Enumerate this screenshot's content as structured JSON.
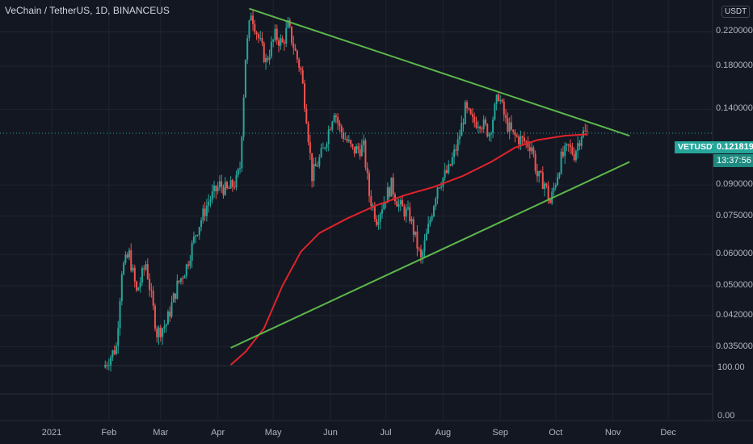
{
  "header": {
    "title": "VeChain / TetherUS, 1D, BINANCEUS",
    "currency_badge": "USDT"
  },
  "price_label": {
    "symbol": "VETUSDT",
    "price": "0.121819",
    "countdown": "13:37:56"
  },
  "lower_pane": {
    "ticks": [
      "100.00",
      "0.00"
    ]
  },
  "colors": {
    "background": "#131722",
    "up": "#26a69a",
    "down": "#ef5350",
    "ma": "#e0232b",
    "trendline": "#5cb84a",
    "grid": "#1f2430"
  },
  "chart_data": {
    "type": "candlestick",
    "title": "VeChain / TetherUS, 1D, BINANCEUS",
    "y_scale": "log",
    "ylim": [
      0.0315,
      0.265
    ],
    "y_ticks": [
      "0.220000",
      "0.180000",
      "0.140000",
      "0.090000",
      "0.075000",
      "0.060000",
      "0.050000",
      "0.042000",
      "0.035000"
    ],
    "x_ticks": [
      "2021",
      "Feb",
      "Mar",
      "Apr",
      "May",
      "Jun",
      "Jul",
      "Aug",
      "Sep",
      "Oct",
      "Nov",
      "Dec"
    ],
    "x_range": [
      "2020-12-04",
      "2021-12-25"
    ],
    "last_price": 0.121819,
    "close_path": [
      [
        "2021-01-29",
        0.031
      ],
      [
        "2021-02-05",
        0.035
      ],
      [
        "2021-02-08",
        0.055
      ],
      [
        "2021-02-12",
        0.06
      ],
      [
        "2021-02-16",
        0.048
      ],
      [
        "2021-02-21",
        0.057
      ],
      [
        "2021-02-27",
        0.038
      ],
      [
        "2021-03-04",
        0.04
      ],
      [
        "2021-03-10",
        0.05
      ],
      [
        "2021-03-15",
        0.056
      ],
      [
        "2021-03-20",
        0.068
      ],
      [
        "2021-03-27",
        0.082
      ],
      [
        "2021-04-02",
        0.09
      ],
      [
        "2021-04-06",
        0.087
      ],
      [
        "2021-04-11",
        0.092
      ],
      [
        "2021-04-13",
        0.1
      ],
      [
        "2021-04-16",
        0.19
      ],
      [
        "2021-04-19",
        0.248
      ],
      [
        "2021-04-22",
        0.22
      ],
      [
        "2021-04-27",
        0.185
      ],
      [
        "2021-05-02",
        0.215
      ],
      [
        "2021-05-06",
        0.205
      ],
      [
        "2021-05-09",
        0.228
      ],
      [
        "2021-05-13",
        0.195
      ],
      [
        "2021-05-16",
        0.175
      ],
      [
        "2021-05-19",
        0.135
      ],
      [
        "2021-05-22",
        0.095
      ],
      [
        "2021-05-28",
        0.11
      ],
      [
        "2021-06-03",
        0.14
      ],
      [
        "2021-06-06",
        0.125
      ],
      [
        "2021-06-13",
        0.11
      ],
      [
        "2021-06-19",
        0.112
      ],
      [
        "2021-06-22",
        0.085
      ],
      [
        "2021-06-26",
        0.074
      ],
      [
        "2021-06-30",
        0.082
      ],
      [
        "2021-07-04",
        0.09
      ],
      [
        "2021-07-08",
        0.08
      ],
      [
        "2021-07-14",
        0.075
      ],
      [
        "2021-07-20",
        0.058
      ],
      [
        "2021-07-24",
        0.07
      ],
      [
        "2021-07-29",
        0.09
      ],
      [
        "2021-08-04",
        0.098
      ],
      [
        "2021-08-09",
        0.115
      ],
      [
        "2021-08-13",
        0.14
      ],
      [
        "2021-08-17",
        0.13
      ],
      [
        "2021-08-21",
        0.131
      ],
      [
        "2021-08-26",
        0.122
      ],
      [
        "2021-08-31",
        0.153
      ],
      [
        "2021-09-04",
        0.13
      ],
      [
        "2021-09-08",
        0.12
      ],
      [
        "2021-09-14",
        0.116
      ],
      [
        "2021-09-18",
        0.113
      ],
      [
        "2021-09-21",
        0.095
      ],
      [
        "2021-09-25",
        0.091
      ],
      [
        "2021-09-28",
        0.081
      ],
      [
        "2021-10-04",
        0.105
      ],
      [
        "2021-10-08",
        0.112
      ],
      [
        "2021-10-11",
        0.108
      ],
      [
        "2021-10-15",
        0.122
      ],
      [
        "2021-10-18",
        0.1218
      ]
    ],
    "ma_line": [
      [
        "2021-04-08",
        0.0315
      ],
      [
        "2021-04-16",
        0.034
      ],
      [
        "2021-04-26",
        0.039
      ],
      [
        "2021-05-06",
        0.05
      ],
      [
        "2021-05-16",
        0.061
      ],
      [
        "2021-05-26",
        0.068
      ],
      [
        "2021-06-10",
        0.074
      ],
      [
        "2021-06-26",
        0.08
      ],
      [
        "2021-07-12",
        0.085
      ],
      [
        "2021-07-27",
        0.089
      ],
      [
        "2021-08-12",
        0.095
      ],
      [
        "2021-08-27",
        0.103
      ],
      [
        "2021-09-09",
        0.112
      ],
      [
        "2021-09-21",
        0.117
      ],
      [
        "2021-10-06",
        0.12
      ],
      [
        "2021-10-18",
        0.121
      ]
    ],
    "trendlines": [
      {
        "points": [
          [
            "2021-04-18",
            0.252
          ],
          [
            "2021-11-10",
            0.12
          ]
        ]
      },
      {
        "points": [
          [
            "2021-04-08",
            0.0348
          ],
          [
            "2021-11-10",
            0.103
          ]
        ]
      }
    ]
  }
}
